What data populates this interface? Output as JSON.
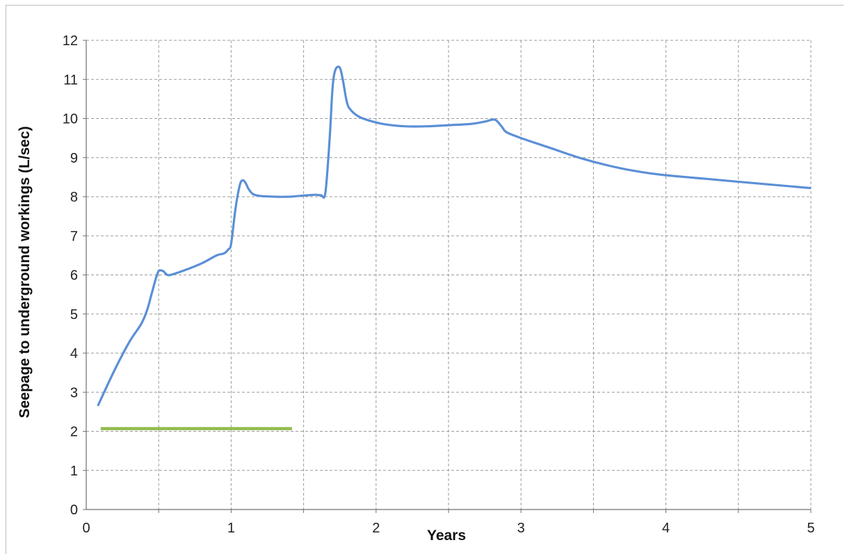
{
  "chart_data": {
    "type": "line",
    "title": "",
    "xlabel": "Years",
    "ylabel": "Seepage to underground workings  (L/sec)",
    "xlim": [
      0,
      5
    ],
    "ylim": [
      0,
      12
    ],
    "x_ticks": [
      "0",
      "1",
      "2",
      "3",
      "4",
      "5"
    ],
    "y_ticks": [
      "0",
      "1",
      "2",
      "3",
      "4",
      "5",
      "6",
      "7",
      "8",
      "9",
      "10",
      "11",
      "12"
    ],
    "minor_x_grid": [
      0.5,
      1.5,
      2.5,
      3.5,
      4.5
    ],
    "grid": true,
    "legend": "none",
    "series": [
      {
        "color": "#5b8fd6",
        "x": [
          0.08,
          0.2,
          0.3,
          0.38,
          0.42,
          0.45,
          0.48,
          0.5,
          0.53,
          0.56,
          0.6,
          0.7,
          0.8,
          0.9,
          0.95,
          0.98,
          1.0,
          1.03,
          1.06,
          1.08,
          1.1,
          1.12,
          1.15,
          1.2,
          1.3,
          1.4,
          1.5,
          1.58,
          1.62,
          1.65,
          1.68,
          1.7,
          1.72,
          1.75,
          1.77,
          1.8,
          1.83,
          1.88,
          1.95,
          2.05,
          2.2,
          2.35,
          2.5,
          2.65,
          2.75,
          2.8,
          2.83,
          2.87,
          2.9,
          3.0,
          3.2,
          3.4,
          3.6,
          3.8,
          4.0,
          4.3,
          4.6,
          5.0
        ],
        "y": [
          2.65,
          3.6,
          4.3,
          4.75,
          5.1,
          5.5,
          5.9,
          6.1,
          6.1,
          6.0,
          6.02,
          6.15,
          6.3,
          6.5,
          6.55,
          6.65,
          6.8,
          7.7,
          8.3,
          8.42,
          8.35,
          8.2,
          8.07,
          8.02,
          8.0,
          8.0,
          8.03,
          8.05,
          8.04,
          8.1,
          9.5,
          10.8,
          11.25,
          11.3,
          11.0,
          10.4,
          10.2,
          10.05,
          9.95,
          9.86,
          9.8,
          9.8,
          9.83,
          9.86,
          9.92,
          9.97,
          9.95,
          9.78,
          9.65,
          9.5,
          9.25,
          9.0,
          8.8,
          8.65,
          8.55,
          8.45,
          8.35,
          8.22
        ]
      },
      {
        "color": "#92bb4e",
        "x": [
          0.1,
          1.42
        ],
        "y": [
          2.07,
          2.07
        ]
      }
    ]
  }
}
